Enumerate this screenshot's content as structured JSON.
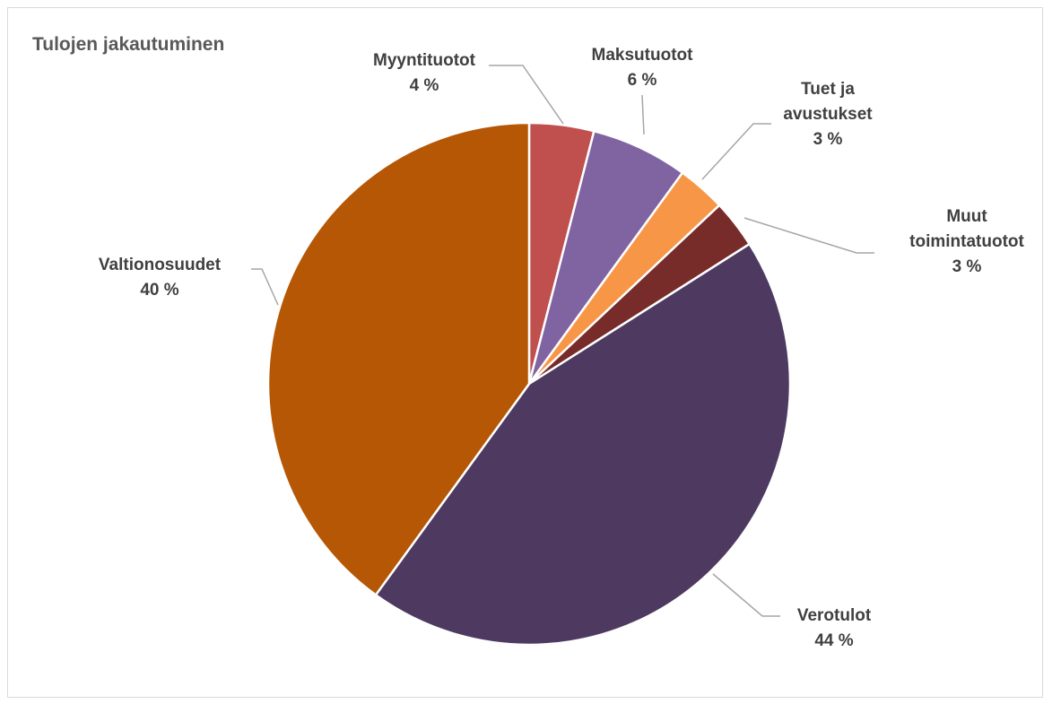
{
  "chart_data": {
    "type": "pie",
    "title": "Tulojen jakautuminen",
    "categories": [
      "Myyntituotot",
      "Maksutuotot",
      "Tuet ja avustukset",
      "Muut toimintatuotot",
      "Verotulot",
      "Valtionosuudet"
    ],
    "values": [
      4,
      6,
      3,
      3,
      44,
      40
    ],
    "value_labels": [
      "4 %",
      "6 %",
      "3 %",
      "3 %",
      "44 %",
      "40 %"
    ],
    "colors": [
      "#c0504d",
      "#8064a2",
      "#f79646",
      "#772c2a",
      "#4e3a61",
      "#b55705"
    ]
  }
}
